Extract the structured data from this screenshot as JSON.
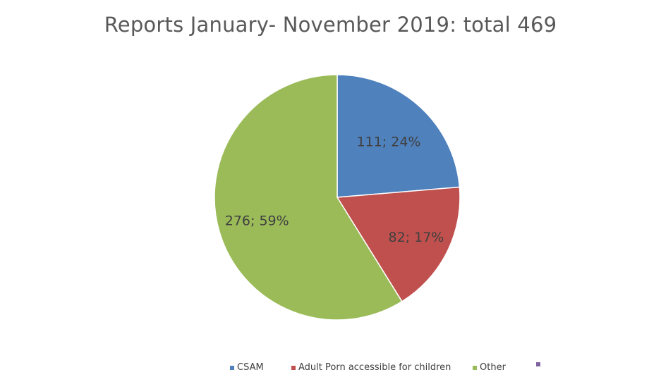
{
  "chart_data": {
    "type": "pie",
    "title": "Reports January- November 2019: total 469",
    "slices": [
      {
        "name": "CSAM",
        "value": 111,
        "label": "111; 24%",
        "color": "#4f81bd"
      },
      {
        "name": "Adult Porn accessible for children",
        "value": 82,
        "label": "82; 17%",
        "color": "#c0504d"
      },
      {
        "name": "Other",
        "value": 276,
        "label": "276; 59%",
        "color": "#9bbb59"
      }
    ],
    "legend": [
      {
        "name": "CSAM",
        "color": "#4f81bd"
      },
      {
        "name": "Adult Porn accessible for children",
        "color": "#c0504d"
      },
      {
        "name": "Other",
        "color": "#9bbb59"
      },
      {
        "name": "",
        "color": "#8064a2"
      }
    ],
    "legend_position": "bottom"
  }
}
